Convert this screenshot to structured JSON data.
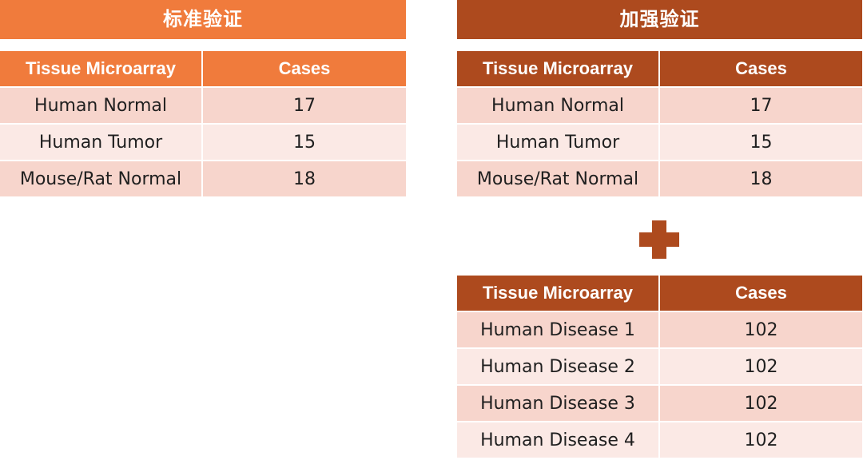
{
  "colors": {
    "accent_left": "#f07b3c",
    "accent_right": "#ad4a1e",
    "row_odd": "#f7d5cc",
    "row_even": "#fbe9e5"
  },
  "left_panel": {
    "title": "标准验证",
    "table": {
      "headers": [
        "Tissue Microarray",
        "Cases"
      ],
      "rows": [
        [
          "Human Normal",
          "17"
        ],
        [
          "Human Tumor",
          "15"
        ],
        [
          "Mouse/Rat Normal",
          "18"
        ]
      ]
    }
  },
  "right_panel": {
    "title": "加强验证",
    "table_top": {
      "headers": [
        "Tissue Microarray",
        "Cases"
      ],
      "rows": [
        [
          "Human Normal",
          "17"
        ],
        [
          "Human Tumor",
          "15"
        ],
        [
          "Mouse/Rat Normal",
          "18"
        ]
      ]
    },
    "connector_icon": "plus-icon",
    "table_bottom": {
      "headers": [
        "Tissue Microarray",
        "Cases"
      ],
      "rows": [
        [
          "Human Disease 1",
          "102"
        ],
        [
          "Human Disease 2",
          "102"
        ],
        [
          "Human Disease 3",
          "102"
        ],
        [
          "Human Disease 4",
          "102"
        ]
      ]
    }
  }
}
